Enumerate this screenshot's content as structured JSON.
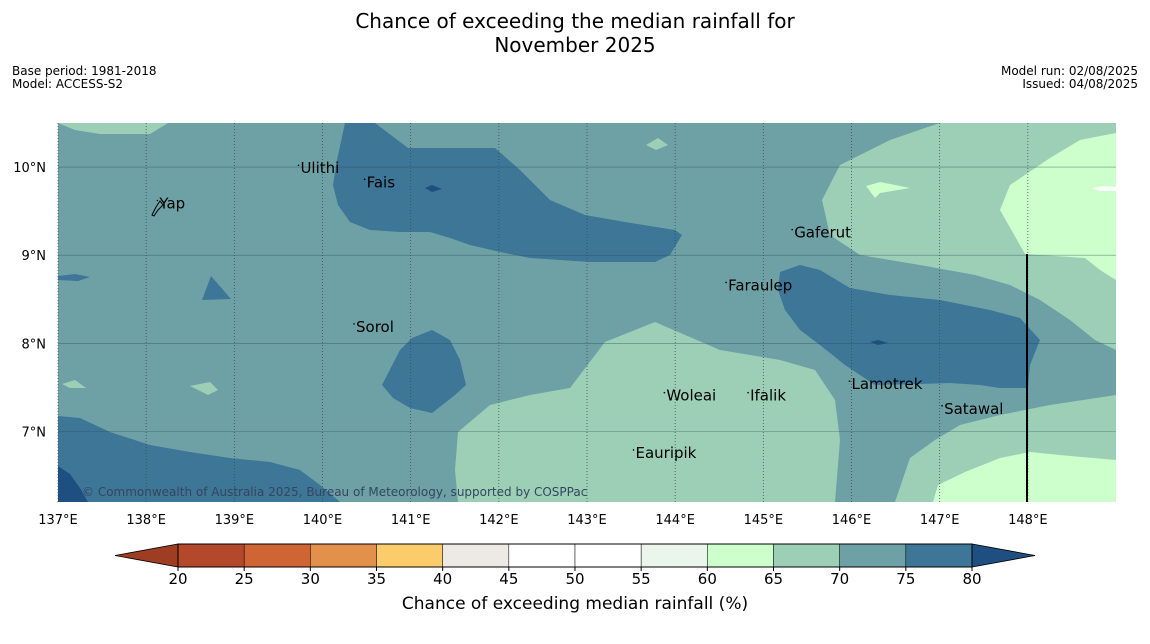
{
  "title": {
    "line1": "Chance of exceeding the median rainfall for",
    "line2": "November 2025"
  },
  "meta_left": {
    "base_period": "Base period: 1981-2018",
    "model": "Model: ACCESS-S2"
  },
  "meta_right": {
    "model_run": "Model run: 02/08/2025",
    "issued": "Issued: 04/08/2025"
  },
  "map": {
    "lon_labels": [
      "137°E",
      "138°E",
      "139°E",
      "140°E",
      "141°E",
      "142°E",
      "143°E",
      "144°E",
      "145°E",
      "146°E",
      "147°E",
      "148°E"
    ],
    "lon_values": [
      137,
      138,
      139,
      140,
      141,
      142,
      143,
      144,
      145,
      146,
      147,
      148
    ],
    "lat_labels": [
      "10°N",
      "9°N",
      "8°N",
      "7°N"
    ],
    "lat_values": [
      10,
      9,
      8,
      7
    ],
    "lon_range": [
      137,
      149
    ],
    "lat_range": [
      6.2,
      10.5
    ],
    "copyright": "© Commonwealth of Australia 2025, Bureau of Meteorology, supported by COSPPac",
    "places": [
      {
        "name": "Ulithi",
        "lon": 139.75,
        "lat": 9.93
      },
      {
        "name": "Fais",
        "lon": 140.5,
        "lat": 9.77
      },
      {
        "name": "Yap",
        "lon": 138.15,
        "lat": 9.53
      },
      {
        "name": "Gaferut",
        "lon": 145.35,
        "lat": 9.2
      },
      {
        "name": "Faraulep",
        "lon": 144.6,
        "lat": 8.6
      },
      {
        "name": "Sorol",
        "lon": 140.38,
        "lat": 8.13
      },
      {
        "name": "Lamotrek",
        "lon": 146.0,
        "lat": 7.48
      },
      {
        "name": "Woleai",
        "lon": 143.9,
        "lat": 7.35
      },
      {
        "name": "Ifalik",
        "lon": 144.85,
        "lat": 7.35
      },
      {
        "name": "Satawal",
        "lon": 147.05,
        "lat": 7.2
      },
      {
        "name": "Eauripik",
        "lon": 143.55,
        "lat": 6.7
      }
    ]
  },
  "colorbar": {
    "ticks": [
      "20",
      "25",
      "30",
      "35",
      "40",
      "45",
      "50",
      "55",
      "60",
      "65",
      "70",
      "75",
      "80"
    ],
    "colors": [
      "#b3492a",
      "#cf6434",
      "#e3914a",
      "#fdcc6a",
      "#edeae6",
      "#ffffff",
      "#ffffff",
      "#eaf6eb",
      "#ccffcc",
      "#9dcfb7",
      "#6ea1a5",
      "#3e7697"
    ],
    "under_color": "#9e3d22",
    "over_color": "#1f4f80",
    "label": "Chance of exceeding median rainfall (%)"
  }
}
